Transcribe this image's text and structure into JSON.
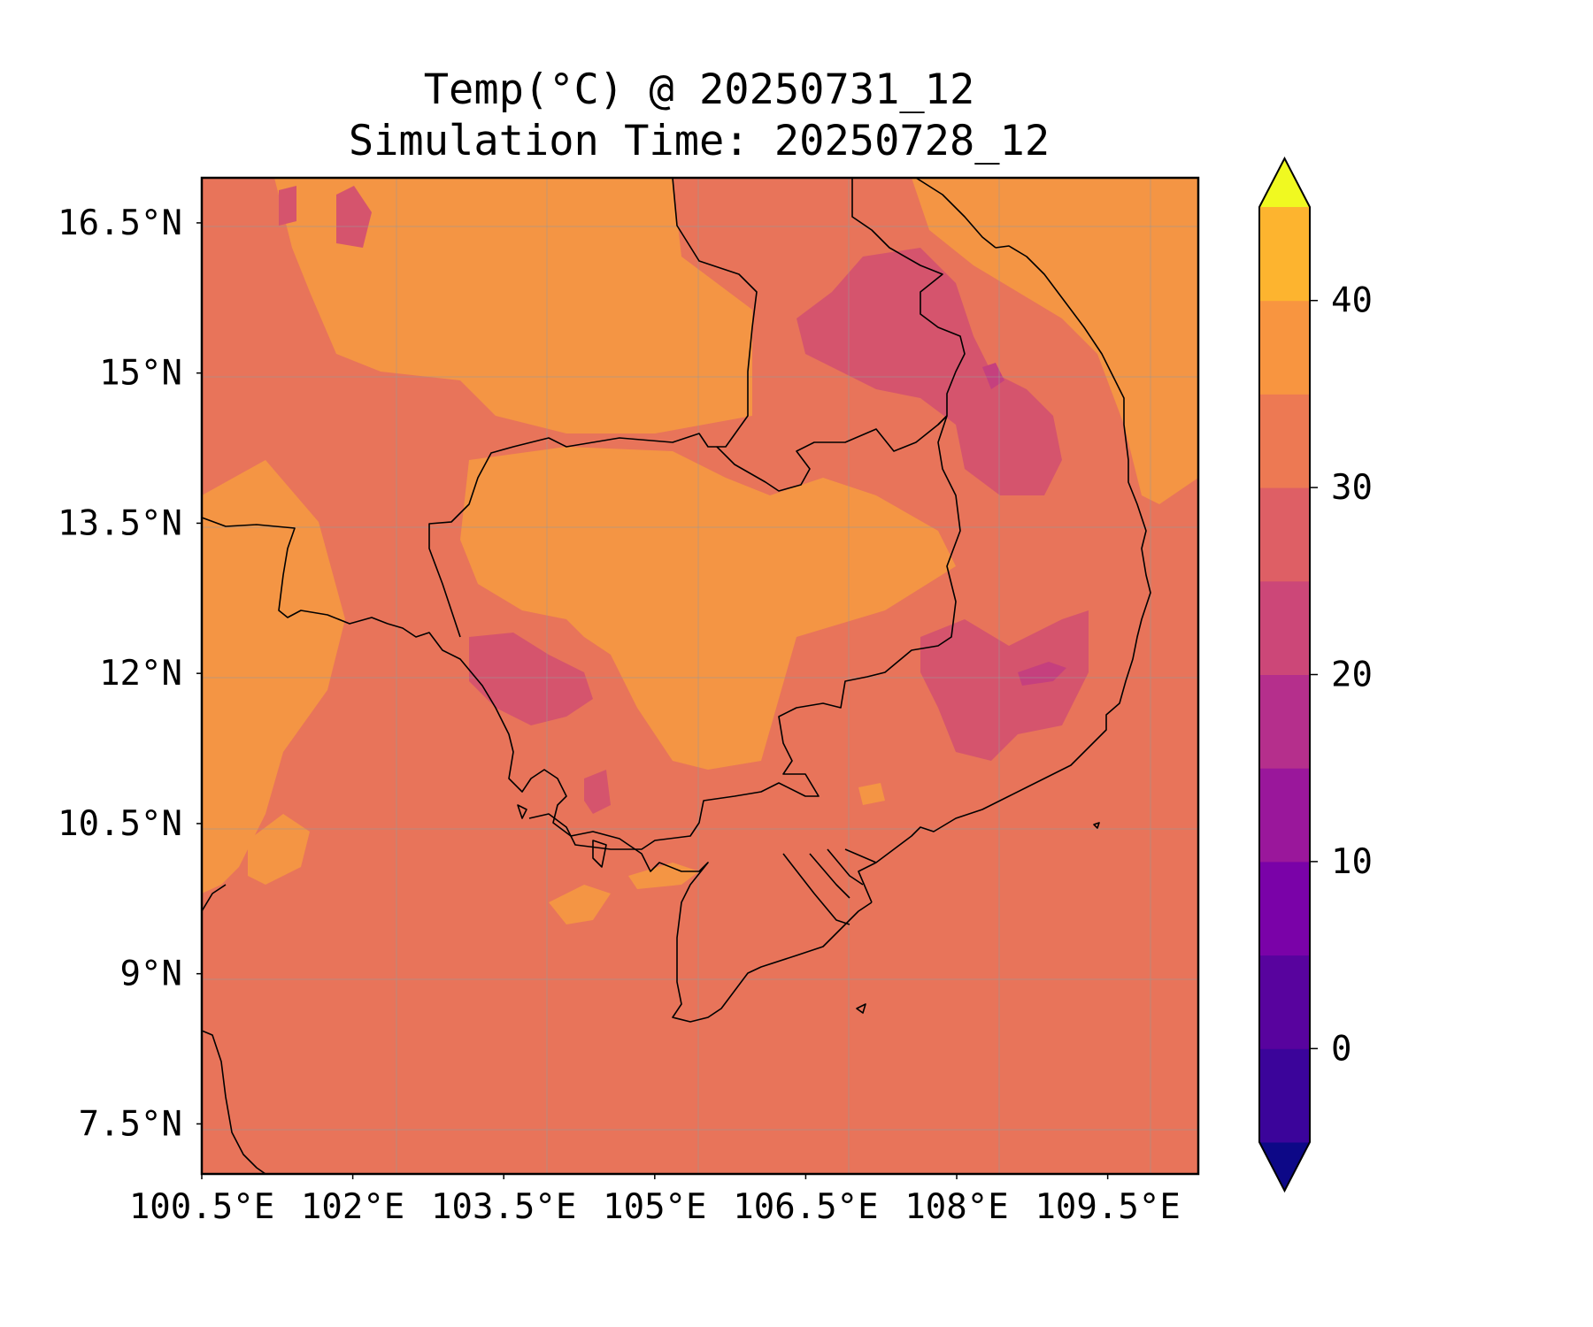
{
  "title": {
    "line1": "Temp(°C) @ 20250731_12",
    "line2": "Simulation Time: 20250728_12"
  },
  "map": {
    "lon_range": [
      100.5,
      110.4
    ],
    "lat_range": [
      7.0,
      16.95
    ],
    "x_ticks": [
      "100.5°E",
      "102°E",
      "103.5°E",
      "105°E",
      "106.5°E",
      "108°E",
      "109.5°E"
    ],
    "y_ticks": [
      "16.5°N",
      "15°N",
      "13.5°N",
      "12°N",
      "10.5°N",
      "9°N",
      "7.5°N"
    ],
    "gridlines": true,
    "coastlines": true,
    "borders": true
  },
  "colorbar": {
    "ticks": [
      "0",
      "10",
      "20",
      "30",
      "40"
    ],
    "levels": [
      -5,
      0,
      5,
      10,
      15,
      20,
      25,
      30,
      35,
      40,
      45
    ],
    "colors": [
      "#1f0786",
      "#3b049a",
      "#58039e",
      "#7a02a8",
      "#9a179b",
      "#b52f8c",
      "#cc4778",
      "#de5f65",
      "#ed7953",
      "#f89540",
      "#fdb42f",
      "#f0f921"
    ],
    "under_color": "#0d0887",
    "over_color": "#f0f921",
    "extend": "both",
    "cmap": "plasma"
  },
  "field_colors": {
    "band_25_30": "#e8745a",
    "band_30_35": "#f49544",
    "band_20_25": "#d5546d",
    "band_15_20": "#c5407e"
  }
}
